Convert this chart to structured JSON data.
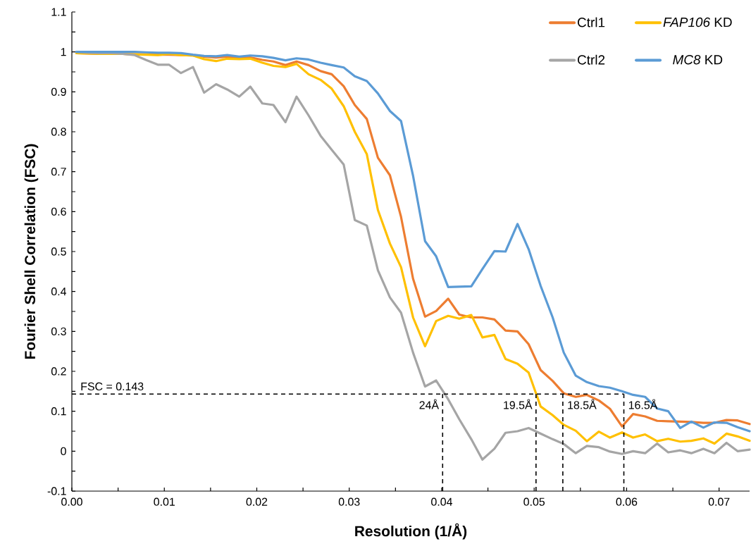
{
  "chart_data": {
    "type": "line",
    "xlabel": "Resolution (1/Å)",
    "ylabel": "Fourier Shell Correlation (FSC)",
    "x": [
      0.0005,
      0.0018,
      0.003,
      0.0043,
      0.0055,
      0.0068,
      0.008,
      0.0093,
      0.0105,
      0.0118,
      0.0131,
      0.0143,
      0.0156,
      0.0168,
      0.0181,
      0.0193,
      0.0206,
      0.0218,
      0.0231,
      0.0243,
      0.0256,
      0.0269,
      0.0281,
      0.0294,
      0.0306,
      0.0319,
      0.0331,
      0.0344,
      0.0356,
      0.0369,
      0.0382,
      0.0394,
      0.0407,
      0.0419,
      0.0432,
      0.0444,
      0.0457,
      0.0469,
      0.0482,
      0.0494,
      0.0507,
      0.052,
      0.0532,
      0.0545,
      0.0557,
      0.057,
      0.0582,
      0.0595,
      0.0607,
      0.062,
      0.0633,
      0.0645,
      0.0658,
      0.067,
      0.0683,
      0.0695,
      0.0708,
      0.072,
      0.0733
    ],
    "series": [
      {
        "name": "Ctrl1",
        "color": "#ed7d31",
        "values": [
          0.997,
          0.996,
          0.995,
          0.995,
          0.995,
          0.994,
          0.994,
          0.993,
          0.993,
          0.992,
          0.991,
          0.988,
          0.986,
          0.988,
          0.985,
          0.986,
          0.98,
          0.976,
          0.967,
          0.976,
          0.967,
          0.952,
          0.944,
          0.914,
          0.867,
          0.832,
          0.735,
          0.691,
          0.587,
          0.432,
          0.337,
          0.351,
          0.382,
          0.342,
          0.335,
          0.335,
          0.33,
          0.302,
          0.3,
          0.268,
          0.203,
          0.176,
          0.145,
          0.136,
          0.141,
          0.127,
          0.106,
          0.062,
          0.093,
          0.087,
          0.076,
          0.075,
          0.074,
          0.073,
          0.071,
          0.071,
          0.078,
          0.077,
          0.068
        ]
      },
      {
        "name": "*FAP106* KD",
        "color": "#ffc000",
        "values": [
          0.997,
          0.996,
          0.995,
          0.995,
          0.995,
          0.994,
          0.993,
          0.992,
          0.995,
          0.992,
          0.991,
          0.982,
          0.977,
          0.983,
          0.982,
          0.983,
          0.973,
          0.965,
          0.962,
          0.97,
          0.944,
          0.93,
          0.908,
          0.864,
          0.8,
          0.744,
          0.604,
          0.52,
          0.461,
          0.335,
          0.263,
          0.326,
          0.339,
          0.332,
          0.341,
          0.285,
          0.291,
          0.231,
          0.219,
          0.197,
          0.112,
          0.09,
          0.066,
          0.051,
          0.025,
          0.049,
          0.034,
          0.047,
          0.034,
          0.042,
          0.025,
          0.031,
          0.024,
          0.026,
          0.032,
          0.019,
          0.044,
          0.037,
          0.026
        ]
      },
      {
        "name": "Ctrl2",
        "color": "#a5a5a5",
        "values": [
          1.0,
          0.998,
          0.997,
          0.997,
          0.995,
          0.992,
          0.98,
          0.968,
          0.968,
          0.947,
          0.962,
          0.898,
          0.919,
          0.906,
          0.888,
          0.913,
          0.871,
          0.867,
          0.824,
          0.888,
          0.841,
          0.79,
          0.755,
          0.718,
          0.579,
          0.565,
          0.453,
          0.385,
          0.347,
          0.247,
          0.162,
          0.177,
          0.13,
          0.08,
          0.03,
          -0.021,
          0.006,
          0.046,
          0.05,
          0.058,
          0.044,
          0.03,
          0.018,
          -0.005,
          0.013,
          0.01,
          -0.001,
          -0.007,
          0.0,
          -0.005,
          0.019,
          -0.003,
          0.002,
          -0.005,
          0.006,
          -0.005,
          0.021,
          0.0,
          0.004
        ]
      },
      {
        "name": "*MC8* KD",
        "color": "#5b9bd5",
        "values": [
          1.0,
          1.0,
          1.0,
          1.0,
          1.0,
          1.0,
          0.999,
          0.998,
          0.998,
          0.997,
          0.993,
          0.99,
          0.989,
          0.992,
          0.988,
          0.991,
          0.989,
          0.985,
          0.979,
          0.984,
          0.981,
          0.973,
          0.967,
          0.961,
          0.939,
          0.927,
          0.896,
          0.852,
          0.827,
          0.69,
          0.526,
          0.488,
          0.411,
          0.412,
          0.413,
          0.456,
          0.501,
          0.5,
          0.569,
          0.506,
          0.414,
          0.335,
          0.247,
          0.189,
          0.173,
          0.163,
          0.159,
          0.15,
          0.141,
          0.136,
          0.107,
          0.1,
          0.058,
          0.074,
          0.059,
          0.072,
          0.071,
          0.06,
          0.05
        ]
      }
    ],
    "xlim": [
      0,
      0.0733
    ],
    "ylim": [
      -0.1,
      1.1
    ],
    "xticks": [
      {
        "value": 0,
        "label": "0.00"
      },
      {
        "value": 0.005,
        "label": null
      },
      {
        "value": 0.01,
        "label": "0.01"
      },
      {
        "value": 0.015,
        "label": null
      },
      {
        "value": 0.02,
        "label": "0.02"
      },
      {
        "value": 0.025,
        "label": null
      },
      {
        "value": 0.03,
        "label": "0.03"
      },
      {
        "value": 0.035,
        "label": null
      },
      {
        "value": 0.04,
        "label": "0.04"
      },
      {
        "value": 0.045,
        "label": null
      },
      {
        "value": 0.05,
        "label": "0.05"
      },
      {
        "value": 0.055,
        "label": null
      },
      {
        "value": 0.06,
        "label": "0.06"
      },
      {
        "value": 0.065,
        "label": null
      },
      {
        "value": 0.07,
        "label": "0.07"
      }
    ],
    "yticks": [
      -0.1,
      {
        "value": -0.05,
        "label": null
      },
      0,
      {
        "value": 0.05,
        "label": null
      },
      0.1,
      {
        "value": 0.15,
        "label": null
      },
      0.2,
      {
        "value": 0.25,
        "label": null
      },
      0.3,
      {
        "value": 0.35,
        "label": null
      },
      0.4,
      {
        "value": 0.45,
        "label": null
      },
      0.5,
      {
        "value": 0.55,
        "label": null
      },
      0.6,
      {
        "value": 0.65,
        "label": null
      },
      0.7,
      {
        "value": 0.75,
        "label": null
      },
      0.8,
      {
        "value": 0.85,
        "label": null
      },
      0.9,
      {
        "value": 0.95,
        "label": null
      },
      1,
      {
        "value": 1.05,
        "label": null
      },
      1.1
    ],
    "ref_lines": [
      {
        "axis": "y",
        "value": 0.143,
        "label": "FSC = 0.143",
        "color": "#000000",
        "line_style": "dashed"
      },
      {
        "axis": "x",
        "value": 0.0401,
        "label": "24Å",
        "color": "#000000",
        "line_style": "dashed"
      },
      {
        "axis": "x",
        "value": 0.0502,
        "label": "19.5Å",
        "color": "#000000",
        "line_style": "dashed"
      },
      {
        "axis": "x",
        "value": 0.0531,
        "label": "18.5Å",
        "color": "#000000",
        "line_style": "dashed"
      },
      {
        "axis": "x",
        "value": 0.0597,
        "label": "16.5Å",
        "color": "#000000",
        "line_style": "dashed"
      }
    ],
    "legend": "top right",
    "marker": "none",
    "line_style": "solid",
    "grid": false
  }
}
